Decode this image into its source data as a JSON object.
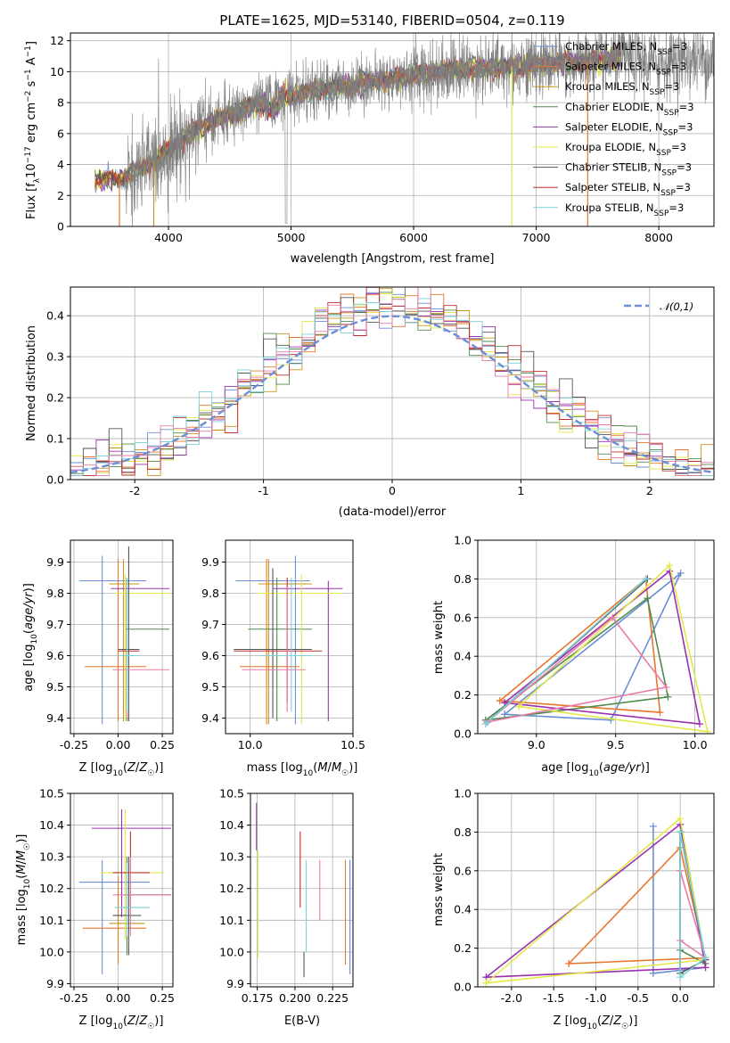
{
  "figure": {
    "title": "PLATE=1625, MJD=53140, FIBERID=0504, z=0.119"
  },
  "colors": {
    "Chabrier MILES": "#6b8fd6",
    "Salpeter MILES": "#e8772c",
    "Kroupa MILES": "#c8961e",
    "Chabrier ELODIE": "#4e8c4e",
    "Salpeter ELODIE": "#9b30b0",
    "Kroupa ELODIE": "#e3e84a",
    "Chabrier STELIB": "#555555",
    "Salpeter STELIB": "#c0302a",
    "Kroupa STELIB": "#7ad0d8",
    "data": "#7f7f7f",
    "pink": "#e87aa8",
    "gauss": "#6b8fd6"
  },
  "chart_data": [
    {
      "id": "spectrum",
      "type": "line",
      "title": "PLATE=1625, MJD=53140, FIBERID=0504, z=0.119",
      "xlabel": "wavelength [Angstrom, rest frame]",
      "ylabel": "Flux [f_λ10^-17 erg cm^-2 s^-1 A^-1]",
      "xlim": [
        3200,
        8450
      ],
      "ylim": [
        0,
        12.5
      ],
      "xticks": [
        4000,
        5000,
        6000,
        7000,
        8000
      ],
      "yticks": [
        0,
        2,
        4,
        6,
        8,
        10,
        12
      ],
      "legend_position": "upper-right",
      "series": [
        {
          "name": "Chabrier MILES, N_SSP=3",
          "color": "Chabrier MILES"
        },
        {
          "name": "Salpeter MILES, N_SSP=3",
          "color": "Salpeter MILES"
        },
        {
          "name": "Kroupa MILES, N_SSP=3",
          "color": "Kroupa MILES"
        },
        {
          "name": "Chabrier ELODIE, N_SSP=3",
          "color": "Chabrier ELODIE"
        },
        {
          "name": "Salpeter ELODIE, N_SSP=3",
          "color": "Salpeter ELODIE"
        },
        {
          "name": "Kroupa ELODIE, N_SSP=3",
          "color": "Kroupa ELODIE"
        },
        {
          "name": "Chabrier STELIB, N_SSP=3",
          "color": "Chabrier STELIB"
        },
        {
          "name": "Salpeter STELIB, N_SSP=3",
          "color": "Salpeter STELIB"
        },
        {
          "name": "Kroupa STELIB, N_SSP=3",
          "color": "Kroupa STELIB"
        }
      ],
      "continuum": {
        "x": [
          3400,
          3600,
          3800,
          3950,
          4100,
          4300,
          4500,
          4700,
          4900,
          5100,
          5300,
          5500,
          5700,
          5900,
          6100,
          6300,
          6500,
          6700,
          6900,
          7100,
          7300,
          7500,
          7700,
          7900,
          8100,
          8300,
          8450
        ],
        "y": [
          3.0,
          3.1,
          3.8,
          4.6,
          5.5,
          6.6,
          7.2,
          7.8,
          8.3,
          8.6,
          8.9,
          9.2,
          9.4,
          9.6,
          9.9,
          10.1,
          10.2,
          10.3,
          10.4,
          10.5,
          10.6,
          10.7,
          10.9,
          10.6,
          10.7,
          10.8,
          10.8
        ]
      },
      "model_range": [
        3400,
        7700
      ],
      "data_range": [
        3640,
        8450
      ]
    },
    {
      "id": "residuals",
      "type": "histogram",
      "xlabel": "(data-model)/error",
      "ylabel": "Normed distribution",
      "xlim": [
        -2.5,
        2.5
      ],
      "ylim": [
        0,
        0.47
      ],
      "xticks": [
        -2,
        -1,
        0,
        1,
        2
      ],
      "yticks": [
        0.0,
        0.1,
        0.2,
        0.3,
        0.4
      ],
      "legend": "𝒩(0,1)",
      "legend_position": "upper-right",
      "bin_width": 0.1
    },
    {
      "id": "age-vs-Z",
      "type": "scatter",
      "xlabel": "Z [log10(Z/Z☉)]",
      "ylabel": "age  [log10(age/yr)]",
      "xlim": [
        -0.27,
        0.31
      ],
      "ylim": [
        9.35,
        9.97
      ],
      "xticks": [
        -0.25,
        0.0,
        0.25
      ],
      "yticks": [
        9.4,
        9.5,
        9.6,
        9.7,
        9.8,
        9.9
      ],
      "points": [
        {
          "s": "Chabrier MILES",
          "x": -0.09,
          "xe": [
            -0.22,
            0.16
          ],
          "y": 9.84,
          "ye": [
            9.38,
            9.92
          ]
        },
        {
          "s": "Salpeter MILES",
          "x": 0.0,
          "xe": [
            -0.19,
            0.16
          ],
          "y": 9.565,
          "ye": [
            9.39,
            9.91
          ]
        },
        {
          "s": "Kroupa MILES",
          "x": 0.03,
          "xe": [
            -0.05,
            0.12
          ],
          "y": 9.83,
          "ye": [
            9.39,
            9.91
          ]
        },
        {
          "s": "Chabrier ELODIE",
          "x": 0.05,
          "xe": [
            0.04,
            0.29
          ],
          "y": 9.685,
          "ye": [
            9.39,
            9.85
          ]
        },
        {
          "s": "Salpeter ELODIE",
          "x": 0.05,
          "xe": [
            -0.04,
            0.29
          ],
          "y": 9.815,
          "ye": [
            9.4,
            9.85
          ]
        },
        {
          "s": "Kroupa ELODIE",
          "x": 0.04,
          "xe": [
            -0.02,
            0.29
          ],
          "y": 9.8,
          "ye": [
            9.39,
            9.86
          ]
        },
        {
          "s": "Chabrier STELIB",
          "x": 0.06,
          "xe": [
            0.0,
            0.12
          ],
          "y": 9.62,
          "ye": [
            9.39,
            9.95
          ]
        },
        {
          "s": "Salpeter STELIB",
          "x": 0.05,
          "xe": [
            0.0,
            0.12
          ],
          "y": 9.615,
          "ye": [
            9.45,
            9.85
          ]
        },
        {
          "s": "pink",
          "x": 0.05,
          "xe": [
            -0.03,
            0.29
          ],
          "y": 9.555,
          "ye": [
            9.4,
            9.82
          ]
        },
        {
          "s": "Kroupa STELIB",
          "x": 0.05,
          "xe": [
            0.0,
            0.12
          ],
          "y": 9.6,
          "ye": [
            9.42,
            9.85
          ]
        }
      ]
    },
    {
      "id": "age-vs-mass",
      "type": "scatter",
      "xlabel": "mass [log10(M/M☉)]",
      "ylabel": "",
      "xlim": [
        9.88,
        10.5
      ],
      "ylim": [
        9.35,
        9.97
      ],
      "xticks": [
        10.0,
        10.5
      ],
      "yticks": [
        9.4,
        9.5,
        9.6,
        9.7,
        9.8,
        9.9
      ],
      "points": [
        {
          "s": "Chabrier MILES",
          "x": 10.22,
          "xe": [
            9.93,
            10.29
          ],
          "y": 9.84,
          "ye": [
            9.38,
            9.92
          ]
        },
        {
          "s": "Salpeter MILES",
          "x": 10.08,
          "xe": [
            9.95,
            10.24
          ],
          "y": 9.565,
          "ye": [
            9.38,
            9.91
          ]
        },
        {
          "s": "Kroupa MILES",
          "x": 10.09,
          "xe": [
            10.04,
            10.3
          ],
          "y": 9.83,
          "ye": [
            9.38,
            9.91
          ]
        },
        {
          "s": "Chabrier ELODIE",
          "x": 10.13,
          "xe": [
            9.99,
            10.3
          ],
          "y": 9.685,
          "ye": [
            9.39,
            9.85
          ]
        },
        {
          "s": "Salpeter ELODIE",
          "x": 10.38,
          "xe": [
            10.11,
            10.45
          ],
          "y": 9.815,
          "ye": [
            9.39,
            9.84
          ]
        },
        {
          "s": "Kroupa ELODIE",
          "x": 10.25,
          "xe": [
            10.04,
            10.45
          ],
          "y": 9.8,
          "ye": [
            9.38,
            9.86
          ]
        },
        {
          "s": "Chabrier STELIB",
          "x": 10.11,
          "xe": [
            9.92,
            10.3
          ],
          "y": 9.62,
          "ye": [
            9.4,
            9.88
          ]
        },
        {
          "s": "Salpeter STELIB",
          "x": 10.18,
          "xe": [
            9.92,
            10.35
          ],
          "y": 9.615,
          "ye": [
            9.45,
            9.85
          ]
        },
        {
          "s": "pink",
          "x": 10.18,
          "xe": [
            9.96,
            10.27
          ],
          "y": 9.555,
          "ye": [
            9.42,
            9.82
          ]
        },
        {
          "s": "Kroupa STELIB",
          "x": 10.2,
          "xe": [
            10.05,
            10.3
          ],
          "y": 9.6,
          "ye": [
            9.42,
            9.85
          ]
        }
      ]
    },
    {
      "id": "weight-vs-age",
      "type": "line",
      "xlabel": "age  [log10(age/yr)]",
      "ylabel": "mass weight",
      "xlim": [
        8.63,
        10.12
      ],
      "ylim": [
        0.0,
        1.0
      ],
      "xticks": [
        9.0,
        9.5,
        10.0
      ],
      "yticks": [
        0.0,
        0.2,
        0.4,
        0.6,
        0.8,
        1.0
      ],
      "series": [
        {
          "s": "Chabrier MILES",
          "x": [
            8.8,
            9.47,
            9.91,
            8.8
          ],
          "y": [
            0.1,
            0.07,
            0.83,
            0.1
          ]
        },
        {
          "s": "Salpeter MILES",
          "x": [
            8.77,
            9.69,
            9.78,
            8.77
          ],
          "y": [
            0.17,
            0.8,
            0.11,
            0.17
          ]
        },
        {
          "s": "Chabrier ELODIE",
          "x": [
            8.68,
            9.7,
            9.83,
            8.68
          ],
          "y": [
            0.07,
            0.7,
            0.19,
            0.07
          ]
        },
        {
          "s": "Salpeter ELODIE",
          "x": [
            8.8,
            9.84,
            10.03,
            8.8
          ],
          "y": [
            0.16,
            0.84,
            0.05,
            0.16
          ]
        },
        {
          "s": "Kroupa ELODIE",
          "x": [
            8.89,
            9.84,
            10.08,
            8.89
          ],
          "y": [
            0.14,
            0.87,
            0.01,
            0.14
          ]
        },
        {
          "s": "Chabrier STELIB",
          "x": [
            8.69,
            9.7,
            8.69
          ],
          "y": [
            0.06,
            0.8,
            0.06
          ]
        },
        {
          "s": "pink",
          "x": [
            8.69,
            9.48,
            9.82,
            8.69
          ],
          "y": [
            0.06,
            0.6,
            0.24,
            0.06
          ]
        },
        {
          "s": "Kroupa STELIB",
          "x": [
            8.68,
            9.69,
            8.68
          ],
          "y": [
            0.05,
            0.8,
            0.05
          ]
        }
      ]
    },
    {
      "id": "mass-vs-Z",
      "type": "scatter",
      "xlabel": "Z [log10(Z/Z☉)]",
      "ylabel": "mass [log10(M/M☉)]",
      "xlim": [
        -0.27,
        0.31
      ],
      "ylim": [
        9.89,
        10.5
      ],
      "xticks": [
        -0.25,
        0.0,
        0.25
      ],
      "yticks": [
        9.9,
        10.0,
        10.1,
        10.2,
        10.3,
        10.4,
        10.5
      ],
      "points": [
        {
          "s": "Chabrier MILES",
          "x": -0.09,
          "xe": [
            -0.22,
            0.18
          ],
          "y": 10.22,
          "ye": [
            9.93,
            10.29
          ]
        },
        {
          "s": "Salpeter MILES",
          "x": 0.0,
          "xe": [
            -0.2,
            0.16
          ],
          "y": 10.075,
          "ye": [
            9.96,
            10.24
          ]
        },
        {
          "s": "Kroupa MILES",
          "x": 0.04,
          "xe": [
            -0.05,
            0.15
          ],
          "y": 10.09,
          "ye": [
            10.04,
            10.3
          ]
        },
        {
          "s": "Chabrier ELODIE",
          "x": 0.05,
          "xe": [
            0.04,
            0.3
          ],
          "y": 10.18,
          "ye": [
            9.99,
            10.3
          ]
        },
        {
          "s": "Salpeter ELODIE",
          "x": 0.02,
          "xe": [
            -0.15,
            0.3
          ],
          "y": 10.39,
          "ye": [
            10.11,
            10.45
          ]
        },
        {
          "s": "Kroupa ELODIE",
          "x": 0.04,
          "xe": [
            -0.1,
            0.26
          ],
          "y": 10.25,
          "ye": [
            10.04,
            10.45
          ]
        },
        {
          "s": "Chabrier STELIB",
          "x": 0.06,
          "xe": [
            -0.03,
            0.13
          ],
          "y": 10.115,
          "ye": [
            9.99,
            10.3
          ]
        },
        {
          "s": "Salpeter STELIB",
          "x": 0.07,
          "xe": [
            -0.03,
            0.18
          ],
          "y": 10.25,
          "ye": [
            10.13,
            10.38
          ]
        },
        {
          "s": "pink",
          "x": 0.07,
          "xe": [
            -0.03,
            0.3
          ],
          "y": 10.18,
          "ye": [
            10.05,
            10.3
          ]
        },
        {
          "s": "Kroupa STELIB",
          "x": 0.05,
          "xe": [
            -0.02,
            0.18
          ],
          "y": 10.14,
          "ye": [
            10.05,
            10.28
          ]
        }
      ]
    },
    {
      "id": "mass-vs-ebv",
      "type": "scatter",
      "xlabel": "E(B-V)",
      "ylabel": "",
      "xlim": [
        0.1705,
        0.2385
      ],
      "ylim": [
        9.89,
        10.5
      ],
      "xticks": [
        0.175,
        0.2,
        0.225
      ],
      "yticks": [
        9.9,
        10.0,
        10.1,
        10.2,
        10.3,
        10.4,
        10.5
      ],
      "points": [
        {
          "s": "Chabrier MILES",
          "x": 0.2365,
          "y": 10.2,
          "ye": [
            9.93,
            10.29
          ]
        },
        {
          "s": "Salpeter MILES",
          "x": 0.2335,
          "y": 10.09,
          "ye": [
            9.96,
            10.29
          ]
        },
        {
          "s": "Salpeter ELODIE",
          "x": 0.1745,
          "y": 10.4,
          "ye": [
            10.32,
            10.47
          ]
        },
        {
          "s": "Kroupa ELODIE",
          "x": 0.1755,
          "y": 10.2,
          "ye": [
            9.98,
            10.32
          ]
        },
        {
          "s": "Chabrier STELIB",
          "x": 0.206,
          "y": 10.0,
          "ye": [
            9.92,
            10.0
          ]
        },
        {
          "s": "Salpeter STELIB",
          "x": 0.2035,
          "y": 10.25,
          "ye": [
            10.14,
            10.38
          ]
        },
        {
          "s": "pink",
          "x": 0.2165,
          "y": 10.2,
          "ye": [
            10.1,
            10.29
          ]
        },
        {
          "s": "Kroupa STELIB",
          "x": 0.2075,
          "y": 10.15,
          "ye": [
            10.0,
            10.29
          ]
        }
      ]
    },
    {
      "id": "weight-vs-Z",
      "type": "line",
      "xlabel": "Z [log10(Z/Z☉)]",
      "ylabel": "mass weight",
      "xlim": [
        -2.4,
        0.4
      ],
      "ylim": [
        0.0,
        1.0
      ],
      "xticks": [
        -2.0,
        -1.5,
        -1.0,
        -0.5,
        0.0
      ],
      "yticks": [
        0.0,
        0.2,
        0.4,
        0.6,
        0.8,
        1.0
      ],
      "series": [
        {
          "s": "Chabrier MILES",
          "x": [
            -0.32,
            -0.32,
            0.3,
            -0.32
          ],
          "y": [
            0.83,
            0.07,
            0.1,
            0.07
          ]
        },
        {
          "s": "Salpeter MILES",
          "x": [
            -1.32,
            0.0,
            0.3,
            -1.32
          ],
          "y": [
            0.12,
            0.72,
            0.15,
            0.12
          ]
        },
        {
          "s": "Chabrier ELODIE",
          "x": [
            0.0,
            0.0,
            0.3,
            0.0
          ],
          "y": [
            0.8,
            0.19,
            0.12,
            0.8
          ]
        },
        {
          "s": "Salpeter ELODIE",
          "x": [
            -2.3,
            0.0,
            0.3,
            -2.3
          ],
          "y": [
            0.05,
            0.84,
            0.1,
            0.05
          ]
        },
        {
          "s": "Kroupa ELODIE",
          "x": [
            -2.3,
            0.0,
            0.3,
            -2.3
          ],
          "y": [
            0.02,
            0.87,
            0.14,
            0.02
          ]
        },
        {
          "s": "Chabrier STELIB",
          "x": [
            0.0,
            0.0,
            0.3,
            0.0
          ],
          "y": [
            0.8,
            0.07,
            0.14,
            0.8
          ]
        },
        {
          "s": "pink",
          "x": [
            0.0,
            0.0,
            0.3,
            0.0
          ],
          "y": [
            0.6,
            0.24,
            0.15,
            0.6
          ]
        },
        {
          "s": "Kroupa STELIB",
          "x": [
            0.0,
            0.0,
            0.3,
            0.0
          ],
          "y": [
            0.8,
            0.05,
            0.15,
            0.8
          ]
        }
      ]
    }
  ]
}
